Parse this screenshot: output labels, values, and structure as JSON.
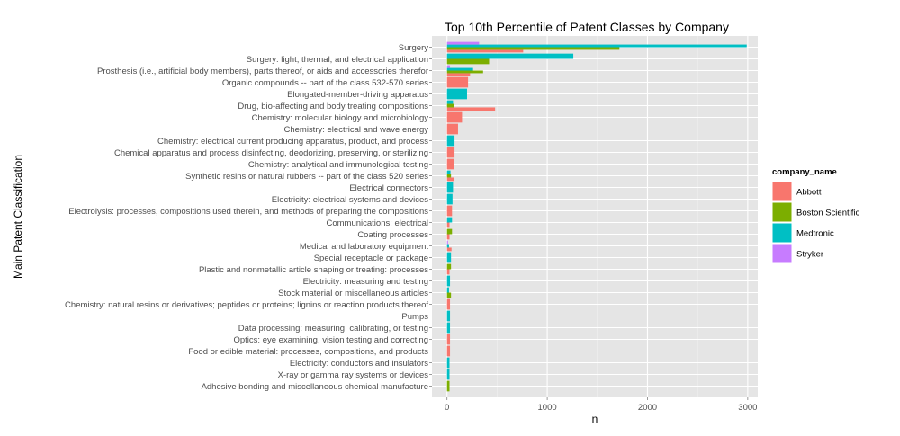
{
  "chart_data": {
    "type": "bar",
    "orientation": "horizontal",
    "title": "Top 10th Percentile of Patent Classes by Company",
    "xlabel": "n",
    "ylabel": "Main Patent Classification",
    "xlim": [
      -150,
      3100
    ],
    "xticks": [
      0,
      1000,
      2000,
      3000
    ],
    "legend_title": "company_name",
    "legend_position": "right",
    "grid": true,
    "series": [
      {
        "name": "Abbott",
        "color": "#F8766D"
      },
      {
        "name": "Boston Scientific",
        "color": "#7CAE00"
      },
      {
        "name": "Medtronic",
        "color": "#00BFC4"
      },
      {
        "name": "Stryker",
        "color": "#C77CFF"
      }
    ],
    "categories": [
      "Surgery",
      "Surgery: light, thermal, and electrical application",
      "Prosthesis (i.e., artificial body members), parts thereof, or aids and accessories therefor",
      "Organic compounds -- part of the class 532-570 series",
      "Elongated-member-driving apparatus",
      "Drug, bio-affecting and body treating compositions",
      "Chemistry: molecular biology and microbiology",
      "Chemistry: electrical and wave energy",
      "Chemistry: electrical current producing apparatus, product, and process",
      "Chemical apparatus and process disinfecting, deodorizing, preserving, or sterilizing",
      "Chemistry: analytical and immunological testing",
      "Synthetic resins or natural rubbers -- part of the class 520 series",
      "Electrical connectors",
      "Electricity: electrical systems and devices",
      "Electrolysis: processes, compositions used therein, and methods of preparing the compositions",
      "Communications: electrical",
      "Coating processes",
      "Medical and laboratory equipment",
      "Special receptacle or package",
      "Plastic and nonmetallic article shaping or treating: processes",
      "Electricity: measuring and testing",
      "Stock material or miscellaneous articles",
      "Chemistry: natural resins or derivatives; peptides or proteins; lignins or reaction products thereof",
      "Pumps",
      "Data processing: measuring, calibrating, or testing",
      "Optics: eye examining, vision testing and correcting",
      "Food or edible material: processes, compositions, and products",
      "Electricity: conductors and insulators",
      "X-ray or gamma ray systems or devices",
      "Adhesive bonding and miscellaneous chemical manufacture"
    ],
    "bars": [
      {
        "category": "Surgery",
        "values": {
          "Abbott": 760,
          "Boston Scientific": 1720,
          "Medtronic": 2990,
          "Stryker": 320
        }
      },
      {
        "category": "Surgery: light, thermal, and electrical application",
        "values": {
          "Boston Scientific": 420,
          "Medtronic": 1260
        }
      },
      {
        "category": "Prosthesis (i.e., artificial body members), parts thereof, or aids and accessories therefor",
        "values": {
          "Abbott": 230,
          "Boston Scientific": 360,
          "Medtronic": 260,
          "Stryker": 30
        }
      },
      {
        "category": "Organic compounds -- part of the class 532-570 series",
        "values": {
          "Abbott": 210
        }
      },
      {
        "category": "Elongated-member-driving apparatus",
        "values": {
          "Medtronic": 200
        }
      },
      {
        "category": "Drug, bio-affecting and body treating compositions",
        "values": {
          "Abbott": 480,
          "Boston Scientific": 70,
          "Medtronic": 60
        }
      },
      {
        "category": "Chemistry: molecular biology and microbiology",
        "values": {
          "Abbott": 150
        }
      },
      {
        "category": "Chemistry: electrical and wave energy",
        "values": {
          "Abbott": 110
        }
      },
      {
        "category": "Chemistry: electrical current producing apparatus, product, and process",
        "values": {
          "Medtronic": 75
        }
      },
      {
        "category": "Chemical apparatus and process disinfecting, deodorizing, preserving, or sterilizing",
        "values": {
          "Abbott": 75
        }
      },
      {
        "category": "Chemistry: analytical and immunological testing",
        "values": {
          "Abbott": 70
        }
      },
      {
        "category": "Synthetic resins or natural rubbers -- part of the class 520 series",
        "values": {
          "Abbott": 70,
          "Boston Scientific": 40,
          "Medtronic": 35
        }
      },
      {
        "category": "Electrical connectors",
        "values": {
          "Medtronic": 60
        }
      },
      {
        "category": "Electricity: electrical systems and devices",
        "values": {
          "Medtronic": 55
        }
      },
      {
        "category": "Electrolysis: processes, compositions used therein, and methods of preparing the compositions",
        "values": {
          "Abbott": 50
        }
      },
      {
        "category": "Communications: electrical",
        "values": {
          "Abbott": 25,
          "Medtronic": 50
        }
      },
      {
        "category": "Coating processes",
        "values": {
          "Abbott": 25,
          "Boston Scientific": 50
        }
      },
      {
        "category": "Medical and laboratory equipment",
        "values": {
          "Abbott": 45,
          "Medtronic": 20,
          "Stryker": 10
        }
      },
      {
        "category": "Special receptacle or package",
        "values": {
          "Medtronic": 40
        }
      },
      {
        "category": "Plastic and nonmetallic article shaping or treating: processes",
        "values": {
          "Abbott": 25,
          "Boston Scientific": 40
        }
      },
      {
        "category": "Electricity: measuring and testing",
        "values": {
          "Medtronic": 30
        }
      },
      {
        "category": "Stock material or miscellaneous articles",
        "values": {
          "Boston Scientific": 40,
          "Medtronic": 20
        }
      },
      {
        "category": "Chemistry: natural resins or derivatives; peptides or proteins; lignins or reaction products thereof",
        "values": {
          "Abbott": 30
        }
      },
      {
        "category": "Pumps",
        "values": {
          "Medtronic": 30
        }
      },
      {
        "category": "Data processing: measuring, calibrating, or testing",
        "values": {
          "Medtronic": 30
        }
      },
      {
        "category": "Optics: eye examining, vision testing and correcting",
        "values": {
          "Abbott": 30
        }
      },
      {
        "category": "Food or edible material: processes, compositions, and products",
        "values": {
          "Abbott": 30
        }
      },
      {
        "category": "Electricity: conductors and insulators",
        "values": {
          "Medtronic": 25
        }
      },
      {
        "category": "X-ray or gamma ray systems or devices",
        "values": {
          "Medtronic": 25
        }
      },
      {
        "category": "Adhesive bonding and miscellaneous chemical manufacture",
        "values": {
          "Boston Scientific": 25
        }
      }
    ]
  }
}
